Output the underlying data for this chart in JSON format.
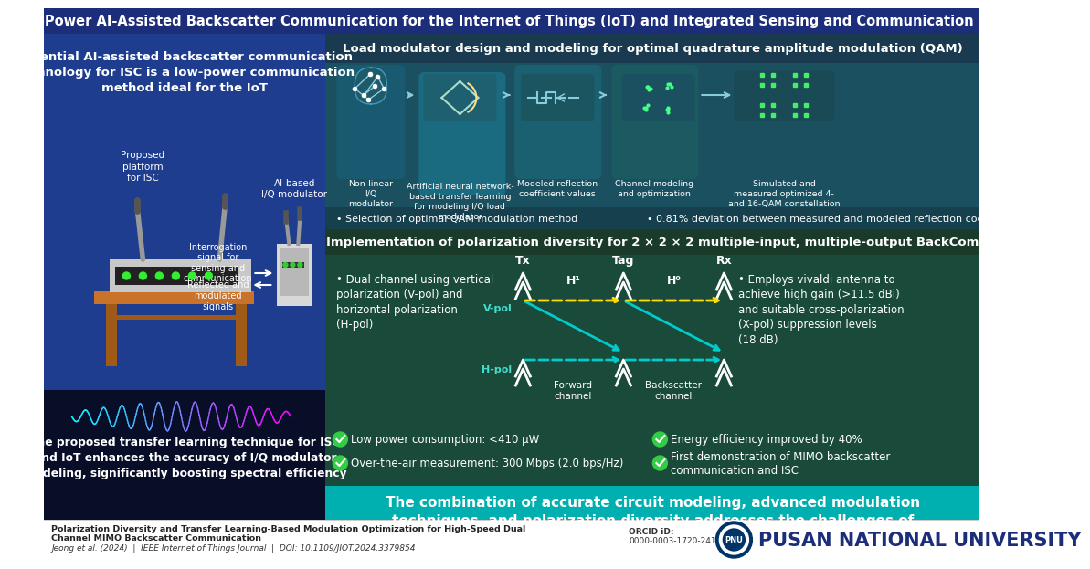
{
  "title": "Low-Power AI-Assisted Backscatter Communication for the Internet of Things (IoT) and Integrated Sensing and Communication (ISC)",
  "title_fontsize": 10.5,
  "title_bg": "#1c2d7a",
  "left_panel_bg": "#1e3d8f",
  "left_panel_title": "Essential AI-assisted backscatter communication\ntechnology for ISC is a low-power communication\nmethod ideal for the IoT",
  "bottom_left_bg": "#0a0f2e",
  "bottom_left_text": "The proposed transfer learning technique for ISC\nand IoT enhances the accuracy of I/Q modulator\nmodeling, significantly boosting spectral efficiency",
  "qam_bg_dark": "#1e5060",
  "qam_bg_light": "#2a7a8a",
  "qam_title": "Load modulator design and modeling for optimal quadrature amplitude modulation (QAM)",
  "qam_bullet1": "• Selection of optimal QAM modulation method",
  "qam_bullet2": "• 0.81% deviation between measured and modeled reflection coefficients",
  "qam_items": [
    {
      "label": "Non-linear\nI/Q\nmodulator"
    },
    {
      "label": "Artificial neural network-\nbased transfer learning\nfor modeling I/Q load\nmodulator"
    },
    {
      "label": "Modeled reflection\ncoefficient values"
    },
    {
      "label": "Channel modeling\nand optimization"
    },
    {
      "label": "Simulated and\nmeasured optimized 4-\nand 16-QAM constellation"
    }
  ],
  "mimo_header_bg": "#1a4a3a",
  "mimo_bg": "#1a5a4a",
  "mimo_title": "Implementation of polarization diversity for 2 × 2 × 2 multiple-input, multiple-output BackCom",
  "mimo_left_text": "• Dual channel using vertical\npolarization (V-pol) and\nhorizontal polarization\n(H-pol)",
  "mimo_right_text": "• Employs vivaldi antenna to\nachieve high gain (>11.5 dBi)\nand suitable cross-polarization\n(X-pol) suppression levels\n(18 dB)",
  "perf_bg": "#1a4a3a",
  "perf_bullets": [
    "Low power consumption: <410 μW",
    "Over-the-air measurement: 300 Mbps (2.0 bps/Hz)",
    "Energy efficiency improved by 40%",
    "First demonstration of MIMO backscatter\ncommunication and ISC"
  ],
  "conclusion_bg": "#00b8b8",
  "conclusion_text": "The combination of accurate circuit modeling, advanced modulation\ntechniques, and polarization diversity addresses the challenges of\nbackscatter communication systems for ISC and IoT",
  "paper_title": "Polarization Diversity and Transfer Learning-Based Modulation Optimization for High-Speed Dual\nChannel MIMO Backscatter Communication",
  "paper_citation": "Jeong et al. (2024)  |  IEEE Internet of Things Journal  |  DOI: 10.1109/JIOT.2024.3379854",
  "university": "PUSAN NATIONAL UNIVERSITY",
  "orcid_label": "ORCID iD:",
  "orcid_value": "0000-0003-1720-2410"
}
